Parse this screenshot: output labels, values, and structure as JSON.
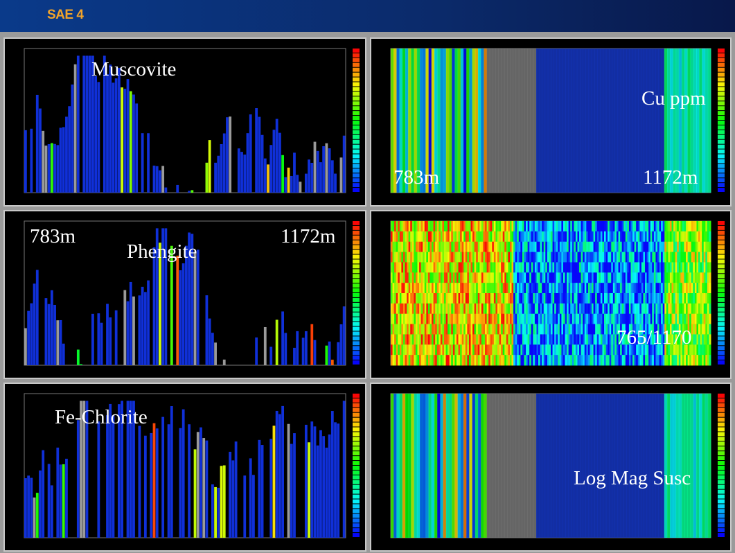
{
  "header": {
    "title": "SAE 4"
  },
  "panels": [
    {
      "labels": [
        "Muscovite"
      ]
    },
    {
      "labels": [
        "Cu ppm",
        "783m",
        "1172m"
      ]
    },
    {
      "labels": [
        "783m",
        "Phengite",
        "1172m"
      ]
    },
    {
      "labels": [
        "765/1170"
      ]
    },
    {
      "labels": [
        "Fe-Chlorite"
      ]
    },
    {
      "labels": [
        "Log Mag Susc"
      ]
    }
  ]
}
